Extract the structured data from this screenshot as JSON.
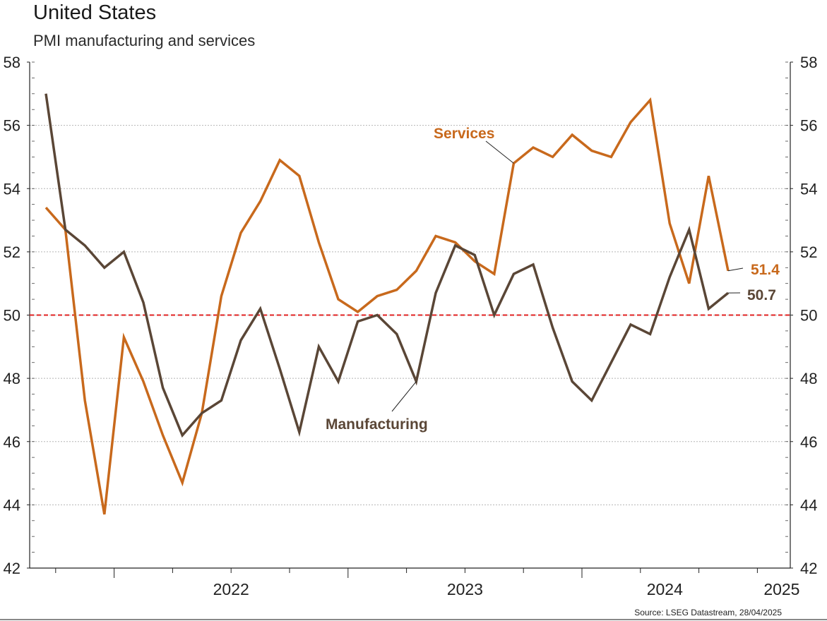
{
  "chart_data": {
    "type": "line",
    "title": "United States",
    "subtitle": "PMI manufacturing and services",
    "source": "Source: LSEG Datastream, 28/04/2025",
    "ylim": [
      42,
      58
    ],
    "yticks": [
      "42",
      "44",
      "46",
      "48",
      "50",
      "52",
      "54",
      "56",
      "58"
    ],
    "secondary_y_axis": true,
    "year_labels": [
      "2022",
      "2023",
      "2024",
      "2025"
    ],
    "x_start_label": "2021-09",
    "reference_line": {
      "value": 50,
      "color": "#e02020",
      "style": "dashed"
    },
    "grid": true,
    "series": [
      {
        "name": "Services",
        "color": "#c8691c",
        "label_text": "Services",
        "end_label": "51.4",
        "values": [
          53.4,
          52.7,
          47.3,
          43.7,
          49.3,
          47.9,
          46.2,
          44.7,
          46.9,
          50.6,
          52.6,
          53.6,
          54.9,
          54.4,
          52.3,
          50.5,
          50.1,
          50.6,
          50.8,
          51.4,
          52.5,
          52.3,
          51.7,
          51.3,
          54.8,
          55.3,
          55.0,
          55.7,
          55.2,
          55.0,
          56.1,
          56.8,
          52.9,
          51.0,
          54.4,
          51.4
        ]
      },
      {
        "name": "Manufacturing",
        "color": "#5a4636",
        "label_text": "Manufacturing",
        "end_label": "50.7",
        "values": [
          57.0,
          52.7,
          52.2,
          51.5,
          52.0,
          50.4,
          47.7,
          46.2,
          46.9,
          47.3,
          49.2,
          50.2,
          48.3,
          46.3,
          49.0,
          47.9,
          49.8,
          50.0,
          49.4,
          47.9,
          50.7,
          52.2,
          51.9,
          50.0,
          51.3,
          51.6,
          49.6,
          47.9,
          47.3,
          48.5,
          49.7,
          49.4,
          51.2,
          52.7,
          50.2,
          50.7
        ]
      }
    ]
  }
}
